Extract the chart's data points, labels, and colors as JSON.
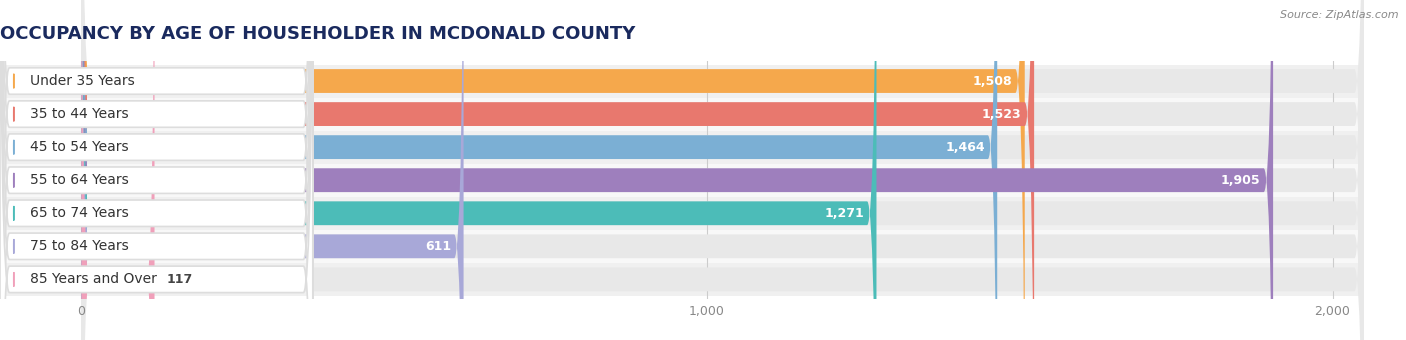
{
  "title": "OCCUPANCY BY AGE OF HOUSEHOLDER IN MCDONALD COUNTY",
  "source": "Source: ZipAtlas.com",
  "categories": [
    "Under 35 Years",
    "35 to 44 Years",
    "45 to 54 Years",
    "55 to 64 Years",
    "65 to 74 Years",
    "75 to 84 Years",
    "85 Years and Over"
  ],
  "values": [
    1508,
    1523,
    1464,
    1905,
    1271,
    611,
    117
  ],
  "bar_colors": [
    "#F5A84C",
    "#E8786E",
    "#7BAFD4",
    "#9E7FBD",
    "#4CBCB8",
    "#A8A8D8",
    "#F0A0BA"
  ],
  "xlim_min": -130,
  "xlim_max": 2050,
  "xticks": [
    0,
    1000,
    2000
  ],
  "xticklabels": [
    "0",
    "1,000",
    "2,000"
  ],
  "bg_color": "#f0f0f0",
  "bar_bg_color": "#e8e8e8",
  "row_bg_color": "#f8f8f8",
  "title_fontsize": 13,
  "label_fontsize": 10,
  "value_fontsize": 9,
  "title_color": "#1a2a5e",
  "label_color": "#333333"
}
